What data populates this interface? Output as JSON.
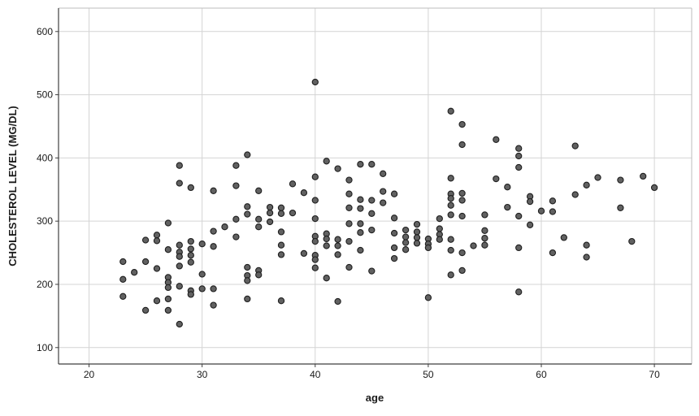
{
  "figure": {
    "x_axis_title": "age",
    "y_axis_title": "CHOLESTEROL LEVEL (MG/DL)"
  },
  "chart_data": {
    "type": "scatter",
    "title": "",
    "xlabel": "age",
    "ylabel": "CHOLESTEROL LEVEL (MG/DL)",
    "xlim": [
      17.3,
      73.3
    ],
    "ylim": [
      74,
      637
    ],
    "x_ticks": [
      20,
      30,
      40,
      50,
      60,
      70
    ],
    "y_ticks": [
      100,
      200,
      300,
      400,
      500,
      600
    ],
    "grid": true,
    "legend": false,
    "marker": {
      "fill": "#616161",
      "stroke": "#1f1f1f",
      "radius": 3.6,
      "stroke_width": 1.1
    },
    "colors": {
      "gridline": "#d4d4d4",
      "frame": "#bdbdbd",
      "axis": "#3f3f3f",
      "tick": "#3f3f3f",
      "text": "#1a1a1a"
    },
    "points": [
      [
        23,
        236
      ],
      [
        23,
        208
      ],
      [
        23,
        181
      ],
      [
        24,
        219
      ],
      [
        25,
        270
      ],
      [
        25,
        236
      ],
      [
        25,
        159
      ],
      [
        26,
        278
      ],
      [
        26,
        269
      ],
      [
        26,
        225
      ],
      [
        26,
        174
      ],
      [
        27,
        297
      ],
      [
        27,
        255
      ],
      [
        27,
        211
      ],
      [
        27,
        203
      ],
      [
        27,
        195
      ],
      [
        27,
        177
      ],
      [
        27,
        159
      ],
      [
        28,
        388
      ],
      [
        28,
        360
      ],
      [
        28,
        262
      ],
      [
        28,
        251
      ],
      [
        28,
        244
      ],
      [
        28,
        229
      ],
      [
        28,
        197
      ],
      [
        28,
        137
      ],
      [
        29,
        353
      ],
      [
        29,
        268
      ],
      [
        29,
        256
      ],
      [
        29,
        246
      ],
      [
        29,
        235
      ],
      [
        29,
        190
      ],
      [
        29,
        184
      ],
      [
        30,
        264
      ],
      [
        30,
        216
      ],
      [
        30,
        193
      ],
      [
        31,
        348
      ],
      [
        31,
        284
      ],
      [
        31,
        260
      ],
      [
        31,
        193
      ],
      [
        31,
        167
      ],
      [
        32,
        291
      ],
      [
        33,
        388
      ],
      [
        33,
        356
      ],
      [
        33,
        303
      ],
      [
        33,
        275
      ],
      [
        34,
        405
      ],
      [
        34,
        323
      ],
      [
        34,
        311
      ],
      [
        34,
        227
      ],
      [
        34,
        214
      ],
      [
        34,
        206
      ],
      [
        34,
        177
      ],
      [
        35,
        348
      ],
      [
        35,
        303
      ],
      [
        35,
        291
      ],
      [
        35,
        222
      ],
      [
        35,
        215
      ],
      [
        36,
        322
      ],
      [
        36,
        313
      ],
      [
        36,
        299
      ],
      [
        37,
        321
      ],
      [
        37,
        312
      ],
      [
        37,
        283
      ],
      [
        37,
        262
      ],
      [
        37,
        247
      ],
      [
        37,
        174
      ],
      [
        38,
        359
      ],
      [
        38,
        313
      ],
      [
        39,
        345
      ],
      [
        39,
        249
      ],
      [
        40,
        520
      ],
      [
        40,
        370
      ],
      [
        40,
        333
      ],
      [
        40,
        304
      ],
      [
        40,
        276
      ],
      [
        40,
        268
      ],
      [
        40,
        246
      ],
      [
        40,
        239
      ],
      [
        40,
        226
      ],
      [
        41,
        395
      ],
      [
        41,
        280
      ],
      [
        41,
        272
      ],
      [
        41,
        261
      ],
      [
        41,
        210
      ],
      [
        42,
        383
      ],
      [
        42,
        271
      ],
      [
        42,
        261
      ],
      [
        42,
        247
      ],
      [
        42,
        173
      ],
      [
        43,
        365
      ],
      [
        43,
        343
      ],
      [
        43,
        321
      ],
      [
        43,
        296
      ],
      [
        43,
        268
      ],
      [
        43,
        227
      ],
      [
        44,
        390
      ],
      [
        44,
        334
      ],
      [
        44,
        320
      ],
      [
        44,
        296
      ],
      [
        44,
        282
      ],
      [
        44,
        254
      ],
      [
        45,
        390
      ],
      [
        45,
        333
      ],
      [
        45,
        312
      ],
      [
        45,
        286
      ],
      [
        45,
        221
      ],
      [
        46,
        375
      ],
      [
        46,
        347
      ],
      [
        46,
        329
      ],
      [
        47,
        343
      ],
      [
        47,
        305
      ],
      [
        47,
        281
      ],
      [
        47,
        258
      ],
      [
        47,
        241
      ],
      [
        48,
        286
      ],
      [
        48,
        275
      ],
      [
        48,
        266
      ],
      [
        48,
        255
      ],
      [
        49,
        295
      ],
      [
        49,
        283
      ],
      [
        49,
        274
      ],
      [
        49,
        265
      ],
      [
        50,
        272
      ],
      [
        50,
        264
      ],
      [
        50,
        258
      ],
      [
        50,
        179
      ],
      [
        51,
        304
      ],
      [
        51,
        288
      ],
      [
        51,
        279
      ],
      [
        51,
        271
      ],
      [
        52,
        474
      ],
      [
        52,
        368
      ],
      [
        52,
        343
      ],
      [
        52,
        336
      ],
      [
        52,
        325
      ],
      [
        52,
        310
      ],
      [
        52,
        271
      ],
      [
        52,
        254
      ],
      [
        52,
        215
      ],
      [
        53,
        453
      ],
      [
        53,
        421
      ],
      [
        53,
        344
      ],
      [
        53,
        333
      ],
      [
        53,
        308
      ],
      [
        53,
        250
      ],
      [
        53,
        222
      ],
      [
        54,
        261
      ],
      [
        55,
        310
      ],
      [
        55,
        285
      ],
      [
        55,
        273
      ],
      [
        55,
        262
      ],
      [
        56,
        429
      ],
      [
        56,
        367
      ],
      [
        57,
        354
      ],
      [
        57,
        322
      ],
      [
        58,
        415
      ],
      [
        58,
        403
      ],
      [
        58,
        385
      ],
      [
        58,
        308
      ],
      [
        58,
        258
      ],
      [
        58,
        188
      ],
      [
        59,
        339
      ],
      [
        59,
        331
      ],
      [
        59,
        294
      ],
      [
        60,
        316
      ],
      [
        61,
        332
      ],
      [
        61,
        315
      ],
      [
        61,
        250
      ],
      [
        62,
        274
      ],
      [
        63,
        419
      ],
      [
        63,
        342
      ],
      [
        64,
        357
      ],
      [
        64,
        262
      ],
      [
        64,
        243
      ],
      [
        65,
        369
      ],
      [
        67,
        365
      ],
      [
        67,
        321
      ],
      [
        68,
        268
      ],
      [
        69,
        371
      ],
      [
        70,
        353
      ]
    ]
  }
}
